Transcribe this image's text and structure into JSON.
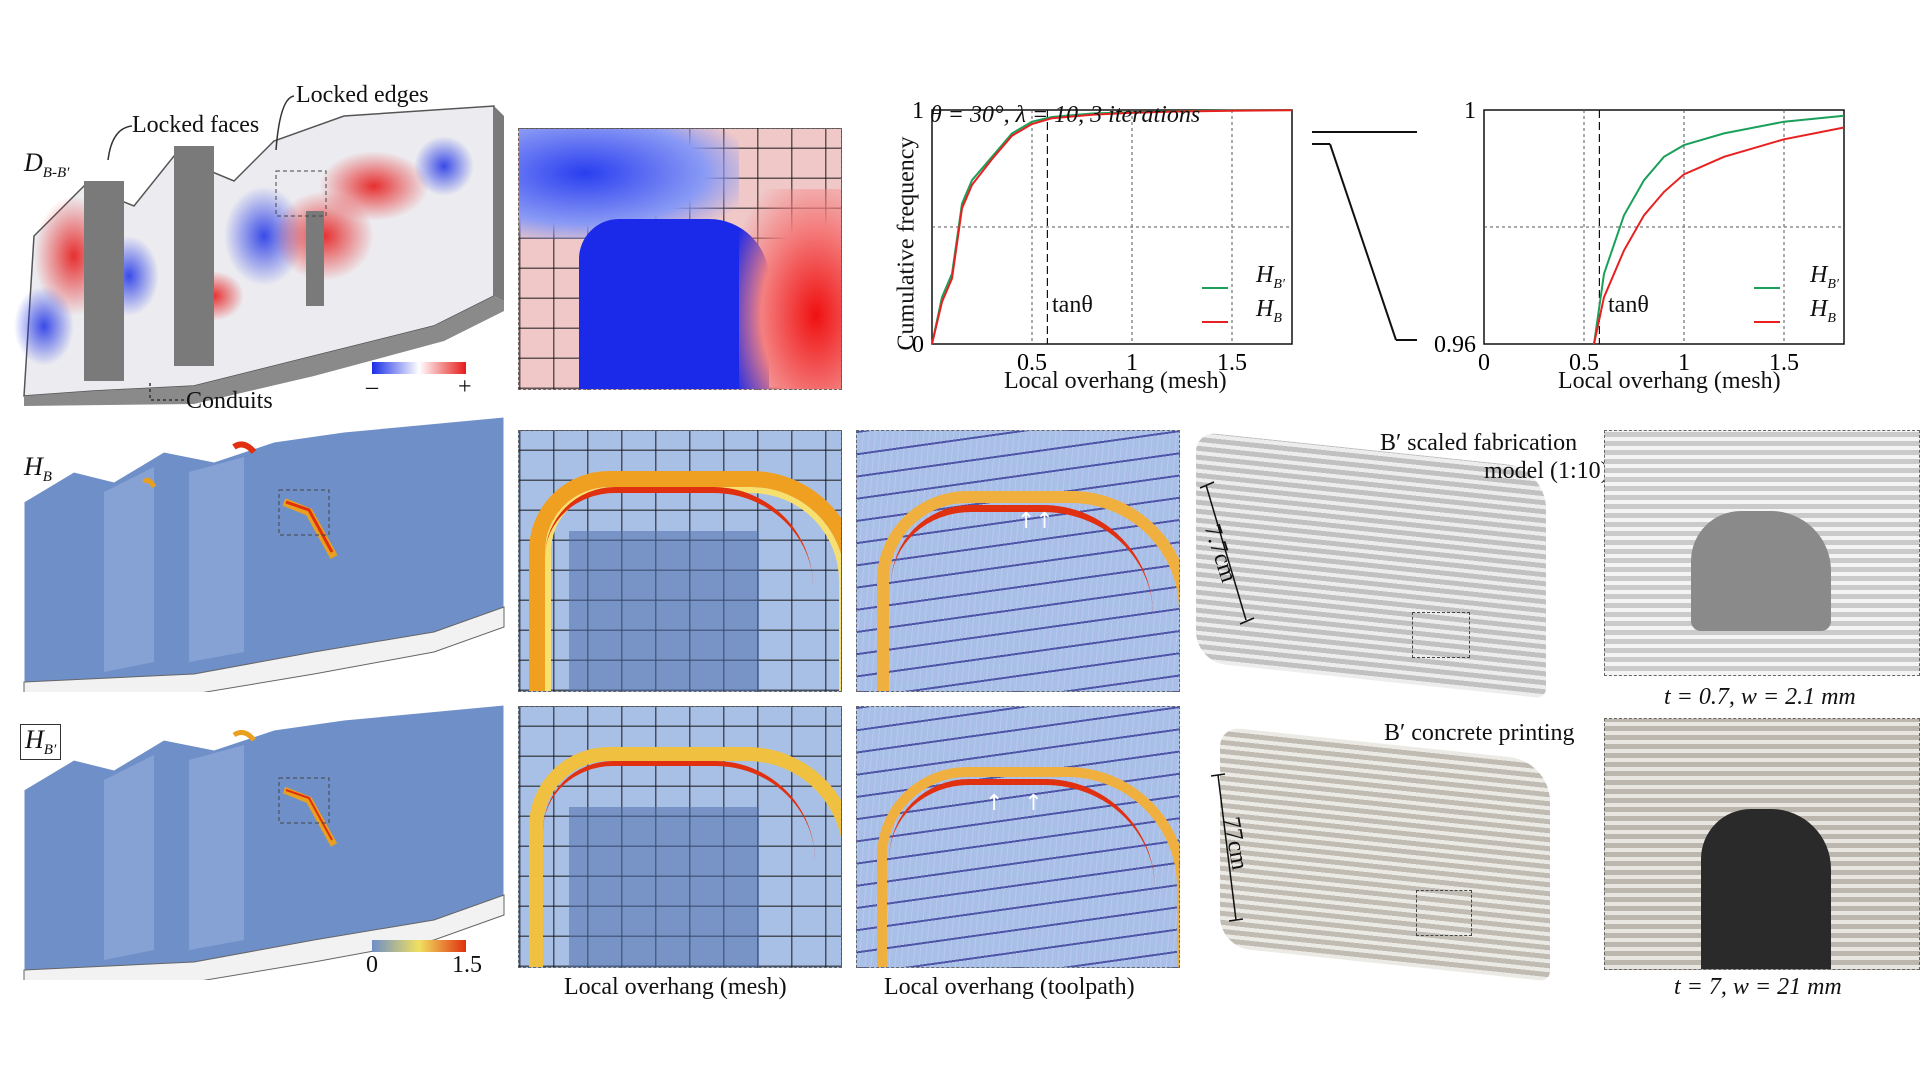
{
  "top_row": {
    "map_label_main": "D",
    "map_label_sub": "B-B′",
    "callout_locked_faces": "Locked faces",
    "callout_locked_edges": "Locked edges",
    "callout_conduits": "Conduits",
    "diff_legend_minus": "–",
    "diff_legend_plus": "+"
  },
  "middle_row": {
    "map_label_main": "H",
    "map_label_sub": "B",
    "photo_caption_line1": "B′ scaled fabrication",
    "photo_caption_line2": "model (1:10)",
    "dimension_label": "7.7cm",
    "closeup_caption": "t = 0.7, w = 2.1 mm"
  },
  "bottom_row": {
    "map_label_main": "H",
    "map_label_sub": "B′",
    "overhang_legend_min": "0",
    "overhang_legend_max": "1.5",
    "caption_mesh": "Local overhang (mesh)",
    "caption_toolpath": "Local overhang (toolpath)",
    "photo_caption": "B′ concrete printing",
    "dimension_label": "77cm",
    "closeup_caption": "t = 7, w = 21 mm"
  },
  "colors": {
    "diff_negative": "#1a2ee6",
    "diff_positive": "#e61a1a",
    "overhang_low": "#6f8fc8",
    "overhang_high": "#e03010",
    "series_H_B_prime": "#1aa05a",
    "series_H_B": "#e82020",
    "solid_gray": "#7a7a7a"
  },
  "chart_data": [
    {
      "type": "line",
      "title": "θ = 30°, λ = 10, 3 iterations",
      "xlabel": "Local overhang (mesh)",
      "ylabel": "Cumulative frequency",
      "xlim": [
        0,
        1.8
      ],
      "ylim": [
        0,
        1
      ],
      "xticks": [
        "0.5",
        "1",
        "1.5"
      ],
      "yticks": [
        "0",
        "1"
      ],
      "annotation": "tanθ",
      "threshold_x": 0.577,
      "grid": "dashed at x=0.5,1,1.5 and y=0.5",
      "legend": "bottom-right",
      "series": [
        {
          "name": "H_B′",
          "label_main": "H",
          "label_sub": "B′",
          "color": "#1aa05a",
          "x": [
            0,
            0.05,
            0.1,
            0.15,
            0.2,
            0.3,
            0.4,
            0.5,
            0.6,
            0.8,
            1.0,
            1.2,
            1.5,
            1.8
          ],
          "y": [
            0,
            0.2,
            0.3,
            0.6,
            0.7,
            0.8,
            0.9,
            0.95,
            0.97,
            0.985,
            0.99,
            0.995,
            0.998,
            1.0
          ]
        },
        {
          "name": "H_B",
          "label_main": "H",
          "label_sub": "B",
          "color": "#e82020",
          "x": [
            0,
            0.05,
            0.1,
            0.15,
            0.2,
            0.3,
            0.4,
            0.5,
            0.6,
            0.8,
            1.0,
            1.2,
            1.5,
            1.8
          ],
          "y": [
            0,
            0.18,
            0.28,
            0.58,
            0.68,
            0.79,
            0.89,
            0.94,
            0.965,
            0.98,
            0.988,
            0.993,
            0.997,
            0.999
          ]
        }
      ]
    },
    {
      "type": "line",
      "xlabel": "Local overhang (mesh)",
      "xlim": [
        0,
        1.8
      ],
      "ylim": [
        0.96,
        1
      ],
      "xticks": [
        "0",
        "0.5",
        "1",
        "1.5"
      ],
      "yticks": [
        "0.96",
        "1"
      ],
      "annotation": "tanθ",
      "threshold_x": 0.577,
      "grid": "dashed at x=0.5,1,1.5 and y=0.98",
      "legend": "bottom-right",
      "series": [
        {
          "name": "H_B′",
          "label_main": "H",
          "label_sub": "B′",
          "color": "#1aa05a",
          "x": [
            0.55,
            0.6,
            0.7,
            0.8,
            0.9,
            1.0,
            1.2,
            1.5,
            1.8
          ],
          "y": [
            0.96,
            0.972,
            0.982,
            0.988,
            0.992,
            0.994,
            0.996,
            0.998,
            0.999
          ]
        },
        {
          "name": "H_B",
          "label_main": "H",
          "label_sub": "B",
          "color": "#e82020",
          "x": [
            0.55,
            0.6,
            0.7,
            0.8,
            0.9,
            1.0,
            1.2,
            1.5,
            1.8
          ],
          "y": [
            0.96,
            0.968,
            0.976,
            0.982,
            0.986,
            0.989,
            0.992,
            0.995,
            0.997
          ]
        }
      ]
    }
  ]
}
